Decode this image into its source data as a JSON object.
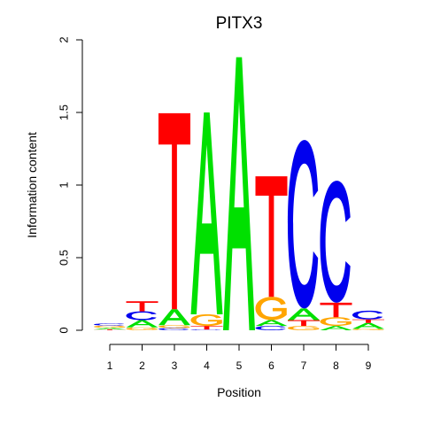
{
  "chart_data": {
    "type": "sequence-logo",
    "title": "PITX3",
    "xlabel": "Position",
    "ylabel": "Information content",
    "ylim": [
      0,
      2
    ],
    "yticks": [
      "0",
      "0.5",
      "1",
      "1.5",
      "2"
    ],
    "xticks": [
      "1",
      "2",
      "3",
      "4",
      "5",
      "6",
      "7",
      "8",
      "9"
    ],
    "letter_colors": {
      "A": "#00e000",
      "C": "#0000ee",
      "G": "#ffa500",
      "T": "#ff0000"
    },
    "positions": [
      {
        "position": 1,
        "stack": [
          {
            "letter": "T",
            "height": 0.005
          },
          {
            "letter": "A",
            "height": 0.012
          },
          {
            "letter": "G",
            "height": 0.015
          },
          {
            "letter": "C",
            "height": 0.015
          }
        ]
      },
      {
        "position": 2,
        "stack": [
          {
            "letter": "G",
            "height": 0.02
          },
          {
            "letter": "A",
            "height": 0.05
          },
          {
            "letter": "C",
            "height": 0.06
          },
          {
            "letter": "T",
            "height": 0.07
          }
        ]
      },
      {
        "position": 3,
        "stack": [
          {
            "letter": "C",
            "height": 0.015
          },
          {
            "letter": "G",
            "height": 0.02
          },
          {
            "letter": "A",
            "height": 0.11
          },
          {
            "letter": "T",
            "height": 1.35
          }
        ]
      },
      {
        "position": 4,
        "stack": [
          {
            "letter": "C",
            "height": 0.005
          },
          {
            "letter": "T",
            "height": 0.025
          },
          {
            "letter": "G",
            "height": 0.08
          },
          {
            "letter": "A",
            "height": 1.39
          }
        ]
      },
      {
        "position": 5,
        "stack": [
          {
            "letter": "A",
            "height": 1.88
          }
        ]
      },
      {
        "position": 6,
        "stack": [
          {
            "letter": "C",
            "height": 0.03
          },
          {
            "letter": "A",
            "height": 0.04
          },
          {
            "letter": "G",
            "height": 0.16
          },
          {
            "letter": "T",
            "height": 0.83
          }
        ]
      },
      {
        "position": 7,
        "stack": [
          {
            "letter": "G",
            "height": 0.03
          },
          {
            "letter": "T",
            "height": 0.04
          },
          {
            "letter": "A",
            "height": 0.08
          },
          {
            "letter": "C",
            "height": 1.16
          }
        ]
      },
      {
        "position": 8,
        "stack": [
          {
            "letter": "A",
            "height": 0.03
          },
          {
            "letter": "G",
            "height": 0.06
          },
          {
            "letter": "T",
            "height": 0.1
          },
          {
            "letter": "C",
            "height": 0.84
          }
        ]
      },
      {
        "position": 9,
        "stack": [
          {
            "letter": "G",
            "height": 0.01
          },
          {
            "letter": "A",
            "height": 0.04
          },
          {
            "letter": "T",
            "height": 0.025
          },
          {
            "letter": "C",
            "height": 0.06
          }
        ]
      }
    ]
  }
}
